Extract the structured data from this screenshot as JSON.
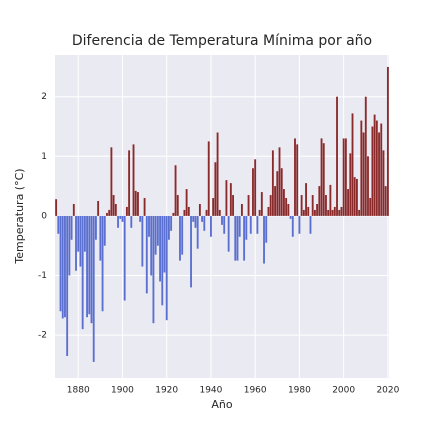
{
  "chart_data": {
    "type": "bar",
    "title": "Diferencia de Temperatura Mínima por año",
    "xlabel": "Año",
    "ylabel": "Temperatura (°C)",
    "x": [
      1870,
      1871,
      1872,
      1873,
      1874,
      1875,
      1876,
      1877,
      1878,
      1879,
      1880,
      1881,
      1882,
      1883,
      1884,
      1885,
      1886,
      1887,
      1888,
      1889,
      1890,
      1891,
      1892,
      1893,
      1894,
      1895,
      1896,
      1897,
      1898,
      1899,
      1900,
      1901,
      1902,
      1903,
      1904,
      1905,
      1906,
      1907,
      1908,
      1909,
      1910,
      1911,
      1912,
      1913,
      1914,
      1915,
      1916,
      1917,
      1918,
      1919,
      1920,
      1921,
      1922,
      1923,
      1924,
      1925,
      1926,
      1927,
      1928,
      1929,
      1930,
      1931,
      1932,
      1933,
      1934,
      1935,
      1936,
      1937,
      1938,
      1939,
      1940,
      1941,
      1942,
      1943,
      1944,
      1945,
      1946,
      1947,
      1948,
      1949,
      1950,
      1951,
      1952,
      1953,
      1954,
      1955,
      1956,
      1957,
      1958,
      1959,
      1960,
      1961,
      1962,
      1963,
      1964,
      1965,
      1966,
      1967,
      1968,
      1969,
      1970,
      1971,
      1972,
      1973,
      1974,
      1975,
      1976,
      1977,
      1978,
      1979,
      1980,
      1981,
      1982,
      1983,
      1984,
      1985,
      1986,
      1987,
      1988,
      1989,
      1990,
      1991,
      1992,
      1993,
      1994,
      1995,
      1996,
      1997,
      1998,
      1999,
      2000,
      2001,
      2002,
      2003,
      2004,
      2005,
      2006,
      2007,
      2008,
      2009,
      2010,
      2011,
      2012,
      2013,
      2014,
      2015,
      2016,
      2017,
      2018,
      2019,
      2020
    ],
    "values": [
      0.28,
      -0.3,
      -1.6,
      -1.72,
      -1.7,
      -2.35,
      -1.0,
      -0.4,
      0.2,
      -0.92,
      -0.6,
      -0.85,
      -1.9,
      -0.6,
      -1.7,
      -1.65,
      -1.8,
      -2.45,
      -0.4,
      0.25,
      -0.75,
      -1.6,
      -0.5,
      0.05,
      0.1,
      1.15,
      0.35,
      0.2,
      -0.2,
      -0.05,
      -0.1,
      -1.42,
      0.15,
      1.1,
      -0.2,
      1.2,
      0.42,
      0.4,
      -0.1,
      -0.85,
      0.3,
      -1.3,
      -0.35,
      -1.0,
      -1.8,
      -0.65,
      -0.5,
      -1.1,
      -1.5,
      -0.95,
      -1.75,
      -0.4,
      -0.25,
      0.05,
      0.85,
      0.35,
      -0.75,
      -0.65,
      0.1,
      0.45,
      0.15,
      -1.2,
      -0.1,
      -0.2,
      -0.55,
      0.2,
      -0.1,
      -0.25,
      0.1,
      1.25,
      -0.35,
      0.3,
      0.9,
      1.4,
      0.1,
      -0.15,
      -0.3,
      0.6,
      -0.6,
      0.55,
      0.35,
      -0.75,
      -0.75,
      -0.35,
      0.2,
      -0.75,
      -0.4,
      0.35,
      -0.3,
      0.8,
      0.95,
      -0.3,
      0.1,
      0.4,
      -0.8,
      -0.45,
      0.15,
      0.35,
      1.1,
      0.5,
      0.75,
      1.15,
      0.8,
      0.45,
      0.3,
      0.2,
      -0.05,
      -0.35,
      1.3,
      1.2,
      -0.3,
      0.35,
      0.1,
      0.55,
      0.15,
      -0.3,
      0.35,
      0.1,
      0.2,
      0.5,
      1.3,
      1.22,
      0.35,
      0.1,
      0.52,
      0.1,
      0.15,
      2.0,
      0.1,
      0.15,
      1.3,
      1.3,
      0.45,
      1.05,
      1.72,
      0.65,
      0.62,
      0.1,
      1.6,
      1.4,
      2.0,
      1.0,
      0.3,
      1.5,
      1.7,
      1.6,
      1.4,
      1.55,
      1.1,
      0.5,
      2.5
    ],
    "positive_color": "#8b2a2a",
    "negative_color": "#5a6fd0",
    "xlim": [
      1869.5,
      2020.5
    ],
    "xticks": [
      1880,
      1900,
      1920,
      1940,
      1960,
      1980,
      2000,
      2020
    ],
    "ylim": [
      -2.72,
      2.7
    ],
    "yticks": [
      -2,
      -1,
      0,
      1,
      2
    ],
    "grid": true
  }
}
